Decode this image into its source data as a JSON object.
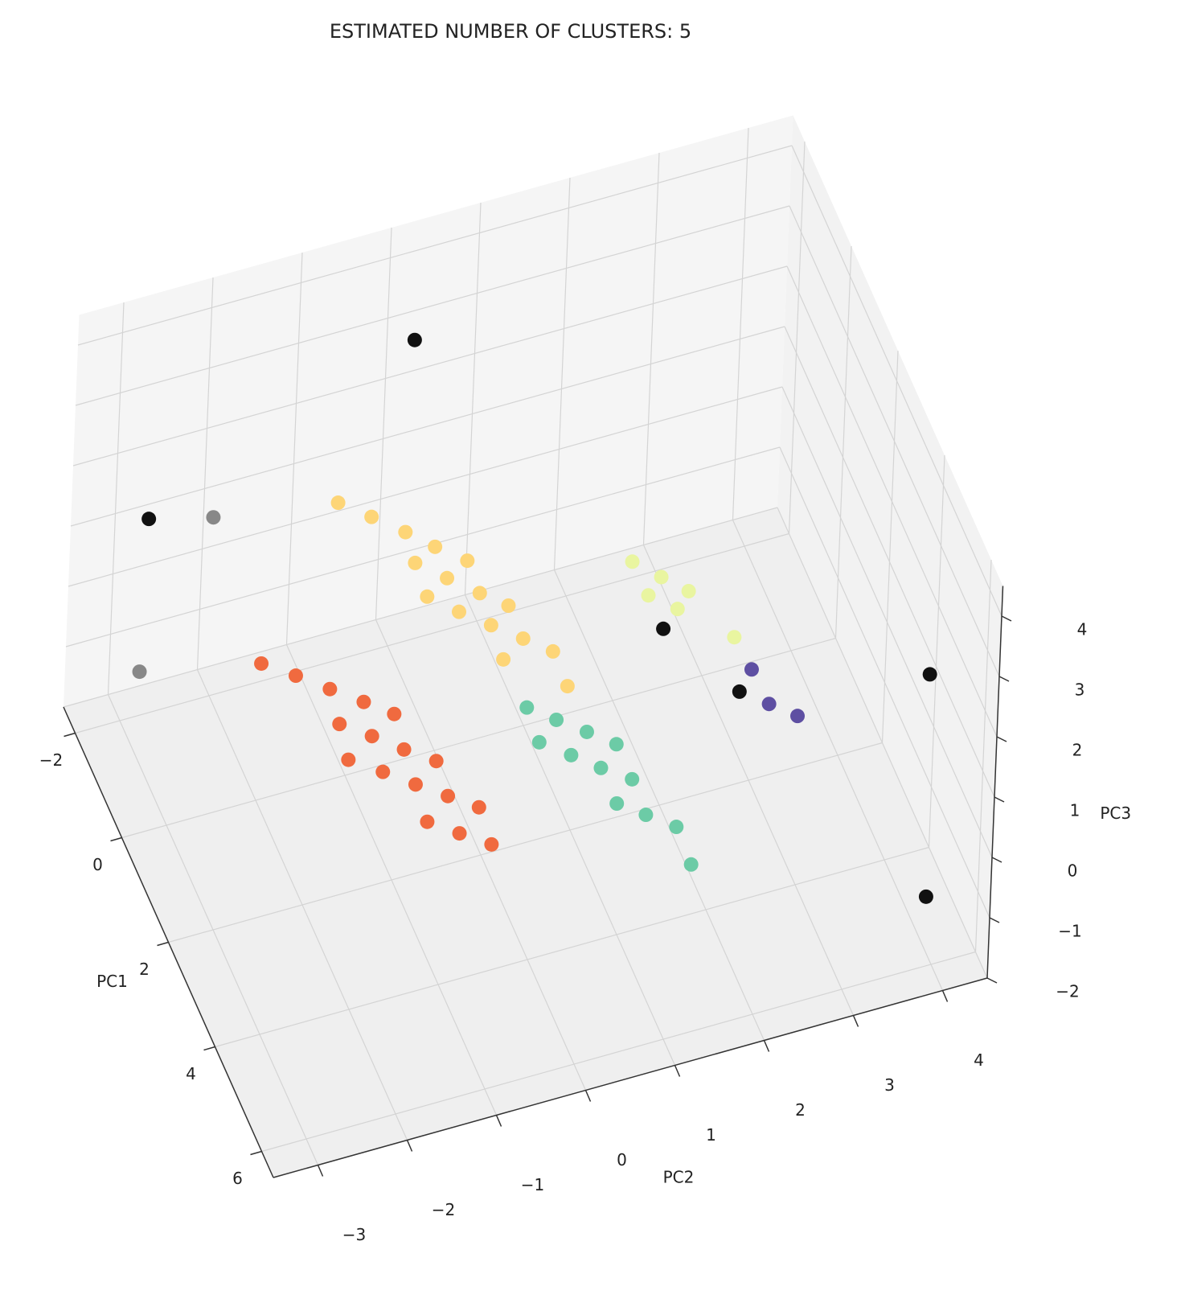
{
  "chart_data": {
    "type": "scatter3d",
    "title": "ESTIMATED NUMBER OF CLUSTERS: 5",
    "xlabel": "PC1",
    "ylabel": "PC2",
    "zlabel": "PC3",
    "xlim": [
      -2.5,
      6.5
    ],
    "ylim": [
      -3.5,
      4.5
    ],
    "zlim": [
      -2,
      4.5
    ],
    "xticks": [
      {
        "value": -2,
        "label": "−2"
      },
      0,
      2,
      4,
      6
    ],
    "yticks": [
      {
        "value": -3,
        "label": "−3"
      },
      {
        "value": -2,
        "label": "−2"
      },
      {
        "value": -1,
        "label": "−1"
      },
      0,
      1,
      2,
      3,
      4
    ],
    "zticks": [
      {
        "value": -2,
        "label": "−2"
      },
      {
        "value": -1,
        "label": "−1"
      },
      0,
      1,
      2,
      3,
      4
    ],
    "grid": true,
    "series": [
      {
        "color": "#f06a3f",
        "x": [
          -0.27,
          0.1,
          0.49,
          0.87,
          1.22,
          1.13,
          1.49,
          1.87,
          1.78,
          2.15,
          2.52,
          2.22,
          2.87,
          3.21,
          3.21,
          3.56,
          3.9
        ],
        "y": [
          -1.92,
          -1.63,
          -1.35,
          -1.07,
          -0.82,
          -1.41,
          -1.14,
          -0.88,
          -1.48,
          -1.19,
          -0.92,
          -0.61,
          -0.65,
          -0.39,
          -0.97,
          -0.7,
          -0.43
        ],
        "z": [
          0,
          0,
          0,
          0,
          0,
          0,
          0,
          0,
          0,
          0,
          0,
          0,
          0,
          0,
          0,
          0,
          0
        ]
      },
      {
        "color": "#fdd577",
        "x": [
          -2.64,
          -2.24,
          -1.82,
          -1.43,
          -1.04,
          -1.25,
          -0.84,
          -0.43,
          -0.08,
          -0.62,
          -0.21,
          0.17,
          0.55,
          0.91,
          0.81,
          1.57
        ],
        "y": [
          -0.44,
          -0.17,
          0.1,
          0.33,
          0.59,
          0.06,
          0.31,
          0.57,
          0.8,
          0.03,
          0.28,
          0.54,
          0.8,
          1.04,
          0.51,
          1.03
        ],
        "z": [
          0,
          0,
          0,
          0,
          0,
          0,
          0,
          0,
          0,
          0,
          0,
          0,
          0,
          0,
          0,
          0
        ]
      },
      {
        "color": "#6ccba6",
        "x": [
          1.74,
          2.09,
          2.44,
          2.79,
          2.39,
          2.76,
          3.12,
          3.46,
          3.8,
          4.13,
          4.48,
          5.19
        ],
        "y": [
          0.53,
          0.77,
          1.02,
          1.26,
          0.5,
          0.76,
          1.0,
          1.26,
          1.0,
          1.24,
          1.49,
          1.47
        ],
        "z": [
          0,
          0,
          0,
          0,
          0,
          0,
          0,
          0,
          0,
          0,
          0,
          0
        ]
      },
      {
        "color": "#e9f5a0",
        "x": [
          -0.24,
          0.16,
          0.41,
          0.53,
          0.78,
          1.53
        ],
        "y": [
          2.23,
          2.45,
          2.24,
          2.66,
          2.47,
          2.91
        ],
        "z": [
          0,
          0,
          0,
          0,
          0,
          0
        ]
      },
      {
        "color": "#5e4fa2",
        "x": [
          2.16,
          2.83,
          3.17
        ],
        "y": [
          2.94,
          2.96,
          3.19
        ],
        "z": [
          0,
          0,
          0
        ]
      },
      {
        "color": "#111111",
        "x": [
          -2.0,
          -2.25,
          1.05,
          2.48,
          5.12,
          5.84
        ],
        "y": [
          0.17,
          -2.69,
          2.24,
          2.72,
          4.11,
          3.96
        ],
        "z": [
          3,
          1,
          0,
          0,
          2,
          -1
        ]
      },
      {
        "color": "#888888",
        "x": [
          -1.97,
          -0.71
        ],
        "y": [
          -2.04,
          -3.17
        ],
        "z": [
          1,
          0
        ]
      }
    ]
  }
}
